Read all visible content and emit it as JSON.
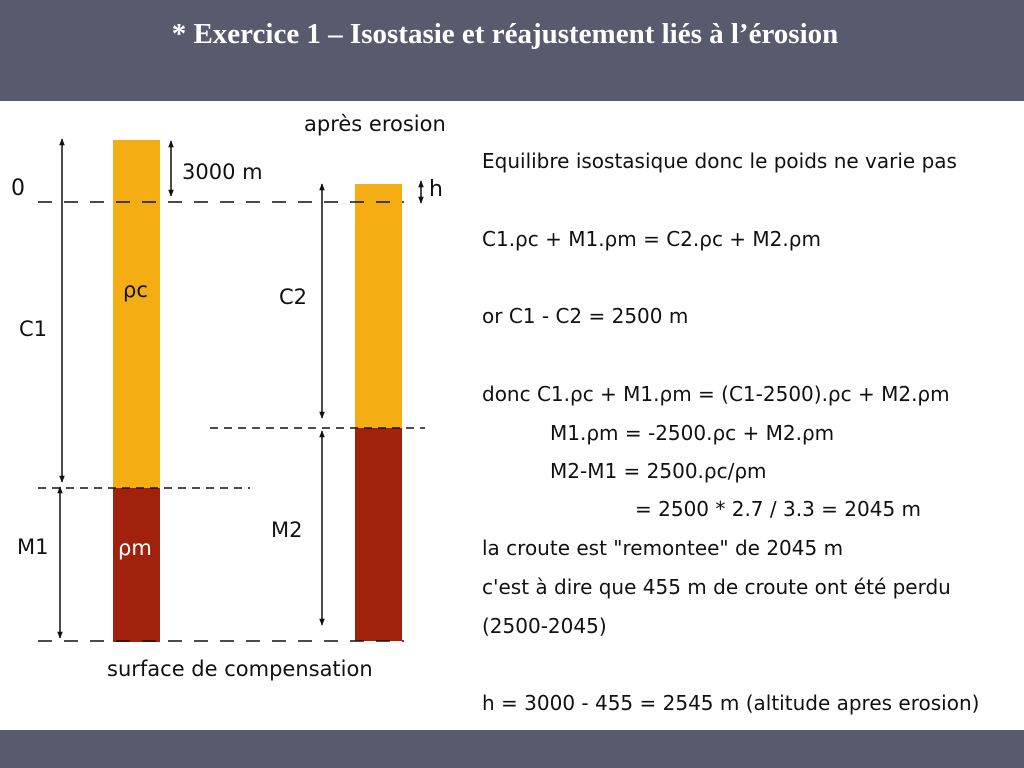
{
  "slide": {
    "title": "* Exercice 1 – Isostasie et réajustement liés à l’érosion"
  },
  "diagram": {
    "label_after_erosion": "après erosion",
    "label_3000": "3000 m",
    "label_zero": "0",
    "label_h": "h",
    "label_C1": "C1",
    "label_C2": "C2",
    "label_M1": "M1",
    "label_M2": "M2",
    "label_rho_c": "ρc",
    "label_rho_m": "ρm",
    "label_compensation": "surface de compensation",
    "colors": {
      "crust": "#f5ad14",
      "mantle": "#a0220d",
      "bar": "#585b6e"
    }
  },
  "explanation": {
    "lines": [
      "Equilibre isostasique donc le poids ne varie pas",
      "C1.ρc + M1.ρm = C2.ρc + M2.ρm",
      "or C1 - C2 = 2500 m",
      "donc  C1.ρc + M1.ρm = (C1-2500).ρc + M2.ρm",
      "M1.ρm = -2500.ρc + M2.ρm",
      "M2-M1 = 2500.ρc/ρm",
      "= 2500 * 2.7 / 3.3 = 2045 m",
      "la croute est \"remontee\" de 2045 m",
      "c'est à dire que 455 m de croute ont été perdu",
      "(2500-2045)",
      "h = 3000 - 455 = 2545 m (altitude apres erosion)"
    ]
  }
}
